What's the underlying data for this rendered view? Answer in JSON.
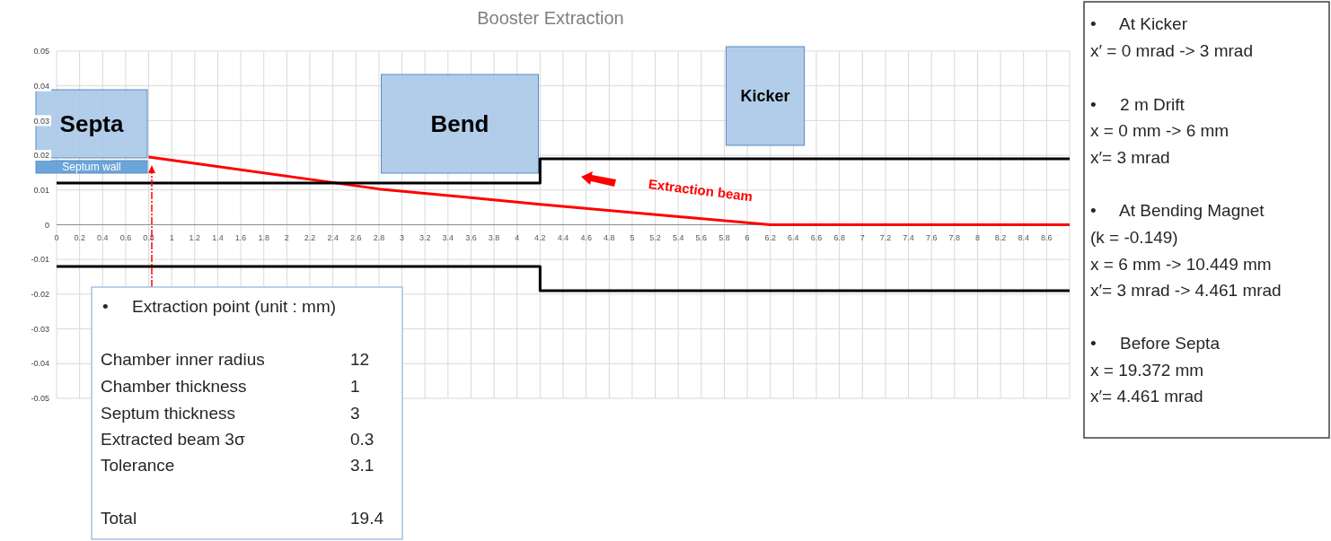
{
  "chart_data": {
    "type": "line",
    "title": "Booster Extraction",
    "xlim": [
      0,
      8.8
    ],
    "xticks": [
      0,
      0.2,
      0.4,
      0.6,
      0.8,
      1,
      1.2,
      1.4,
      1.6,
      1.8,
      2,
      2.2,
      2.4,
      2.6,
      2.8,
      3,
      3.2,
      3.4,
      3.6,
      3.8,
      4,
      4.2,
      4.4,
      4.6,
      4.8,
      5,
      5.2,
      5.4,
      5.6,
      5.8,
      6,
      6.2,
      6.4,
      6.6,
      6.8,
      7,
      7.2,
      7.4,
      7.6,
      7.8,
      8,
      8.2,
      8.4,
      8.6
    ],
    "ylim": [
      -0.05,
      0.05
    ],
    "yticks": [
      -0.05,
      -0.04,
      -0.03,
      -0.02,
      -0.01,
      0,
      0.01,
      0.02,
      0.03,
      0.04,
      0.05
    ],
    "grid": true,
    "marker": "none",
    "line_style": "solid",
    "series": [
      {
        "color": "#ff0000",
        "x": [
          0.8,
          2.8,
          4.2,
          6.2,
          8.8
        ],
        "values": [
          0.0195,
          0.0103,
          0.0059,
          0,
          0
        ]
      },
      {
        "color": "#000000",
        "x": [
          0,
          4.2,
          4.2,
          8.8
        ],
        "values": [
          0.012,
          0.012,
          0.019,
          0.019
        ]
      },
      {
        "color": "#000000",
        "x": [
          0,
          4.2,
          4.2,
          8.8
        ],
        "values": [
          -0.012,
          -0.012,
          -0.019,
          -0.019
        ]
      }
    ],
    "annotations": [
      "Septa",
      "Septum wall",
      "Bend",
      "Kicker",
      "Extraction beam",
      "•     Extraction point (unit : mm)",
      "Chamber inner radius",
      "12",
      "Chamber thickness",
      "1",
      "Septum thickness",
      "3",
      "Extracted beam 3σ",
      "0.3",
      "Tolerance",
      "3.1",
      "Total",
      "19.4",
      "•     At Kicker",
      "x′ = 0 mrad -> 3 mrad",
      "•     2 m Drift",
      "x = 0 mm -> 6 mm",
      "x′= 3 mrad",
      "•     At Bending Magnet",
      "(k = -0.149)",
      "x = 6 mm -> 10.449 mm",
      "x′= 3 mrad -> 4.461 mrad",
      "•     Before Septa",
      "x = 19.372 mm",
      "x′= 4.461 mrad"
    ]
  }
}
